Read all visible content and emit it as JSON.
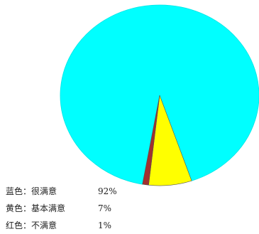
{
  "chart_data": {
    "type": "pie",
    "categories": [
      "蓝色：很满意",
      "黄色：基本满意",
      "红色：不满意"
    ],
    "values": [
      92,
      7,
      1
    ],
    "value_labels": [
      "92%",
      "7%",
      "1%"
    ],
    "colors": [
      "#00ffff",
      "#ffff00",
      "#a03030"
    ],
    "legend_position": "bottom-left",
    "start_angle_deg": 190
  }
}
